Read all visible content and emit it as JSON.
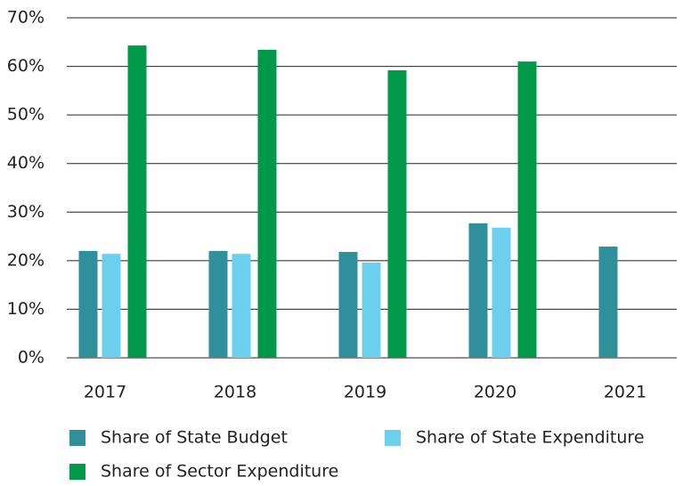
{
  "chart_data": {
    "type": "bar",
    "categories": [
      "2017",
      "2018",
      "2019",
      "2020",
      "2021"
    ],
    "series": [
      {
        "name": "Share of State Budget",
        "color": "#2f8f9b",
        "values": [
          22,
          22,
          21.8,
          27.7,
          22.9
        ]
      },
      {
        "name": "Share of State Expenditure",
        "color": "#6ccfee",
        "values": [
          21.4,
          21.4,
          19.6,
          26.8,
          null
        ]
      },
      {
        "name": "Share of Sector Expenditure",
        "color": "#00994a",
        "values": [
          64.3,
          63.4,
          59.2,
          61.0,
          null
        ]
      }
    ],
    "ylim": [
      0,
      70
    ],
    "yticks": [
      {
        "value": 0,
        "label": "0%"
      },
      {
        "value": 10,
        "label": "10%"
      },
      {
        "value": 20,
        "label": "20%"
      },
      {
        "value": 30,
        "label": "30%"
      },
      {
        "value": 40,
        "label": "40%"
      },
      {
        "value": 50,
        "label": "50%"
      },
      {
        "value": 60,
        "label": "60%"
      },
      {
        "value": 70,
        "label": "70%"
      }
    ],
    "grid": true
  }
}
